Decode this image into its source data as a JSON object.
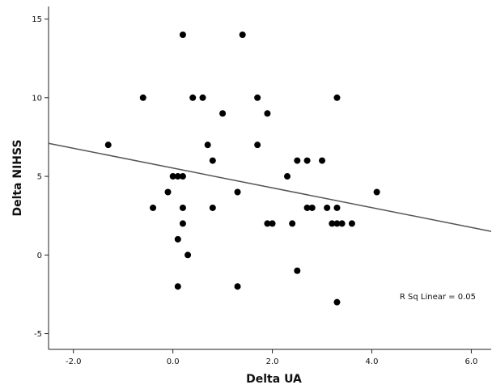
{
  "chart_data": {
    "type": "scatter",
    "xlabel": "Delta UA",
    "ylabel": "Delta NIHSS",
    "xlim": [
      -2.5,
      6.4
    ],
    "ylim": [
      -6.0,
      15.8
    ],
    "xticks": [
      -2.0,
      0.0,
      2.0,
      4.0,
      6.0
    ],
    "xtick_labels": [
      "-2.0",
      "0.0",
      "2.0",
      "4.0",
      "6.0"
    ],
    "yticks": [
      -5,
      0,
      5,
      10,
      15
    ],
    "ytick_labels": [
      "-5",
      "0",
      "5",
      "10",
      "15"
    ],
    "grid": false,
    "points": [
      {
        "x": 0.2,
        "y": 14
      },
      {
        "x": 1.4,
        "y": 14
      },
      {
        "x": -0.6,
        "y": 10
      },
      {
        "x": 0.4,
        "y": 10
      },
      {
        "x": 0.6,
        "y": 10
      },
      {
        "x": 1.7,
        "y": 10
      },
      {
        "x": 3.3,
        "y": 10
      },
      {
        "x": 1.0,
        "y": 9
      },
      {
        "x": 1.9,
        "y": 9
      },
      {
        "x": -1.3,
        "y": 7
      },
      {
        "x": 0.7,
        "y": 7
      },
      {
        "x": 1.7,
        "y": 7
      },
      {
        "x": 0.8,
        "y": 6
      },
      {
        "x": 2.5,
        "y": 6
      },
      {
        "x": 2.7,
        "y": 6
      },
      {
        "x": 3.0,
        "y": 6
      },
      {
        "x": 0.0,
        "y": 5
      },
      {
        "x": 0.1,
        "y": 5
      },
      {
        "x": 0.2,
        "y": 5
      },
      {
        "x": 2.3,
        "y": 5
      },
      {
        "x": -0.1,
        "y": 4
      },
      {
        "x": 1.3,
        "y": 4
      },
      {
        "x": 4.1,
        "y": 4
      },
      {
        "x": -0.4,
        "y": 3
      },
      {
        "x": 0.2,
        "y": 3
      },
      {
        "x": 0.8,
        "y": 3
      },
      {
        "x": 2.7,
        "y": 3
      },
      {
        "x": 2.8,
        "y": 3
      },
      {
        "x": 3.1,
        "y": 3
      },
      {
        "x": 3.3,
        "y": 3
      },
      {
        "x": 0.2,
        "y": 2
      },
      {
        "x": 1.9,
        "y": 2
      },
      {
        "x": 2.0,
        "y": 2
      },
      {
        "x": 2.4,
        "y": 2
      },
      {
        "x": 3.2,
        "y": 2
      },
      {
        "x": 3.3,
        "y": 2
      },
      {
        "x": 3.4,
        "y": 2
      },
      {
        "x": 3.6,
        "y": 2
      },
      {
        "x": 0.1,
        "y": 1
      },
      {
        "x": 0.3,
        "y": 0
      },
      {
        "x": 2.5,
        "y": -1
      },
      {
        "x": 0.1,
        "y": -2
      },
      {
        "x": 1.3,
        "y": -2
      },
      {
        "x": 3.3,
        "y": -3
      }
    ],
    "fit_line": {
      "x1": -2.5,
      "y1": 7.1,
      "x2": 6.4,
      "y2": 1.5
    },
    "annotation": "R Sq Linear = 0.05",
    "colors": {
      "point": "#000000",
      "line": "#555555",
      "axis": "#222222"
    }
  }
}
